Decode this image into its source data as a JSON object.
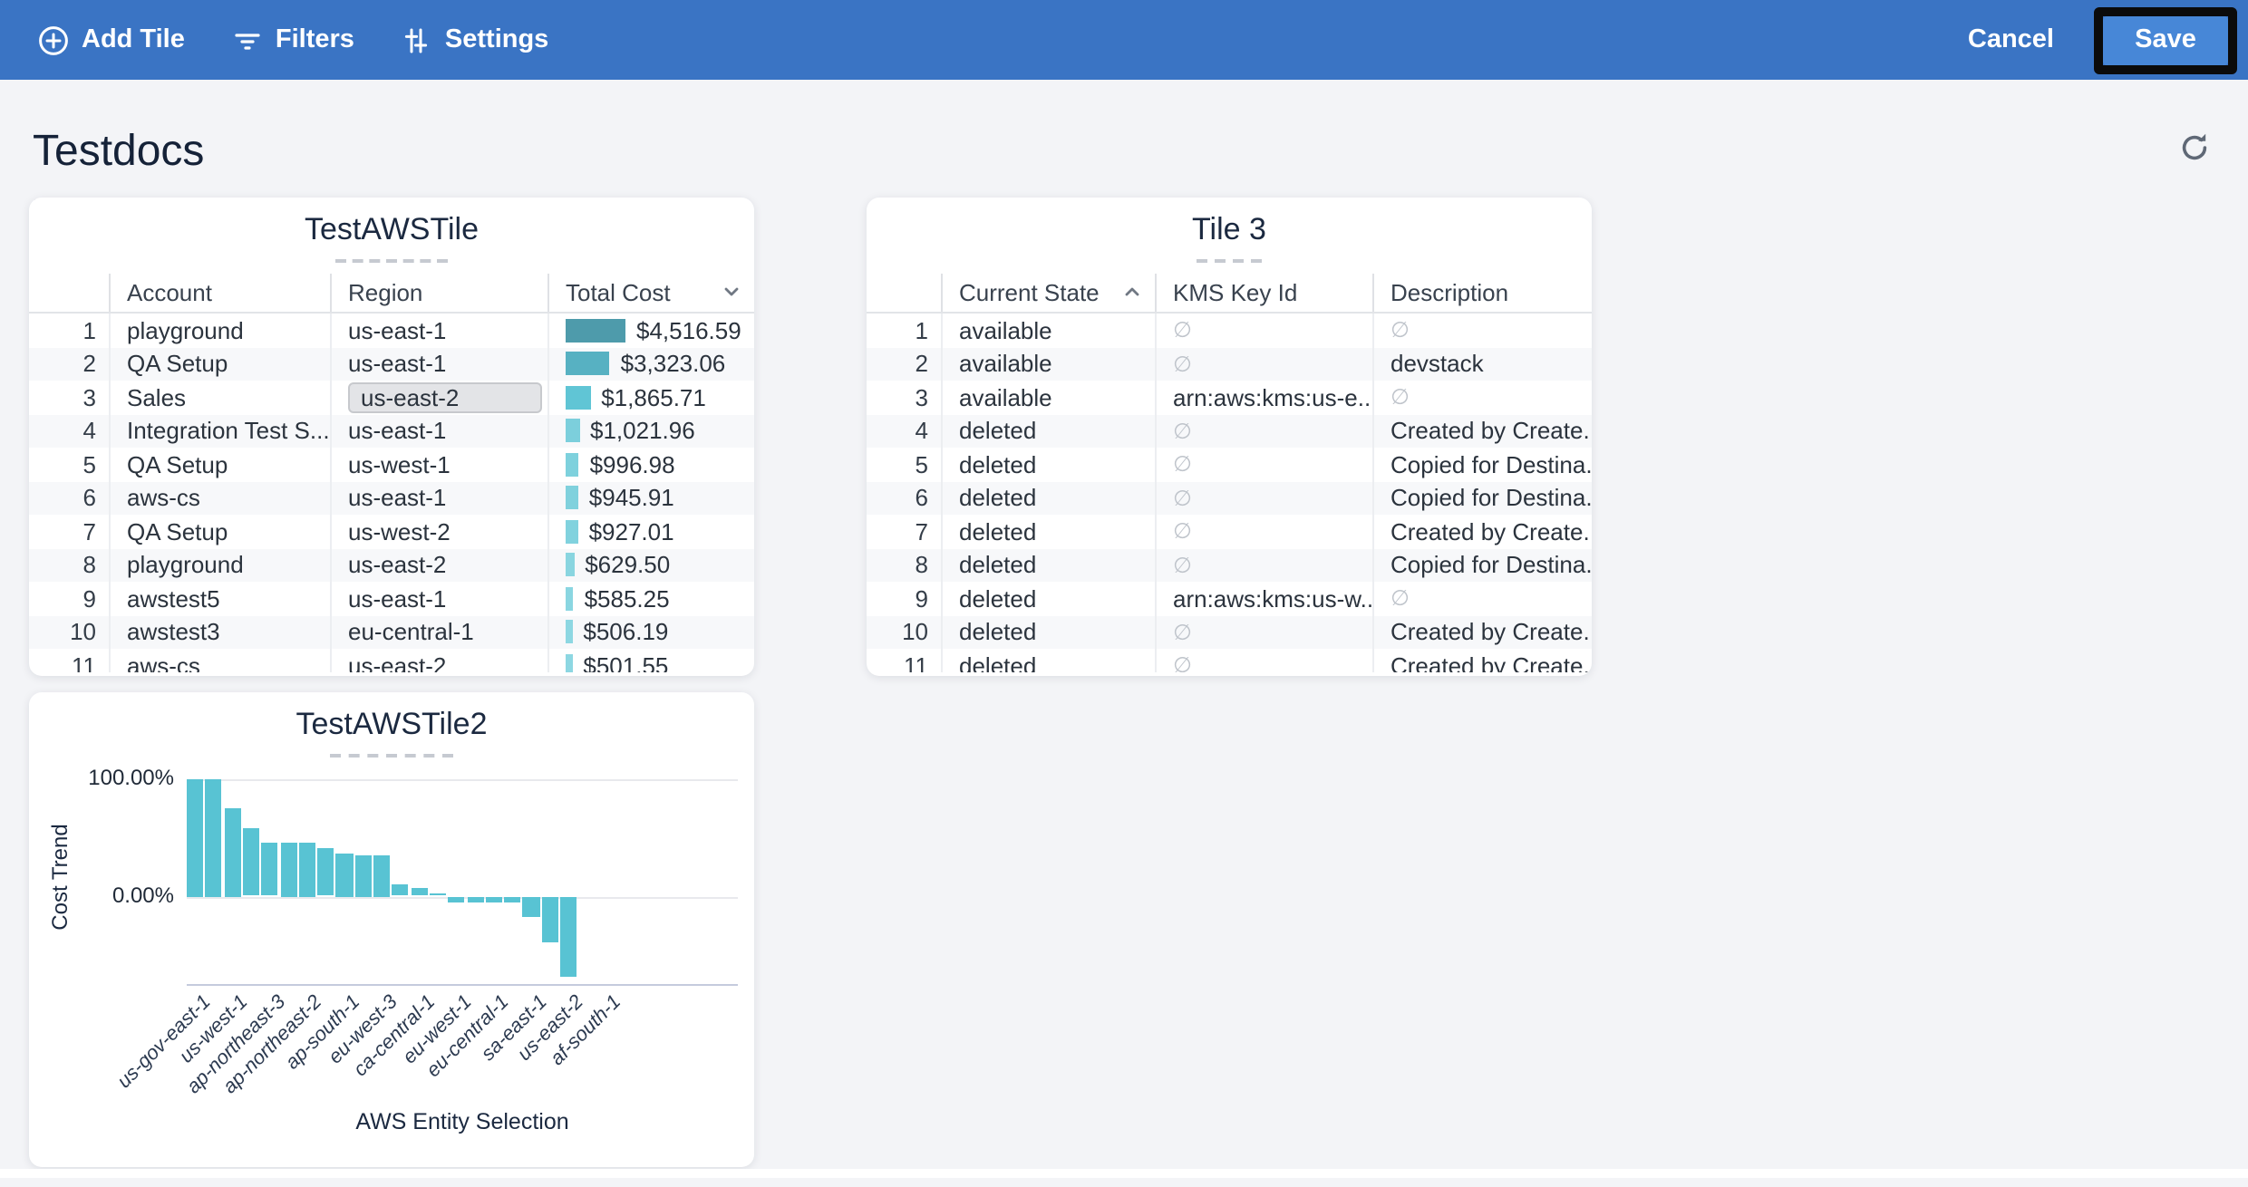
{
  "topbar": {
    "add_tile": "Add Tile",
    "filters": "Filters",
    "settings": "Settings",
    "cancel": "Cancel",
    "save": "Save",
    "bg_color": "#3a74c4",
    "save_color": "#4787d7"
  },
  "page": {
    "title": "Testdocs"
  },
  "tile1": {
    "title": "TestAWSTile",
    "columns": {
      "account": "Account",
      "region": "Region",
      "cost": "Total Cost"
    },
    "sort": {
      "column": "Total Cost",
      "direction": "desc"
    },
    "bar_max_value": 4516.59,
    "rows": [
      {
        "n": "1",
        "account": "playground",
        "region": "us-east-1",
        "cost": "$4,516.59",
        "bar_pct": 100.0,
        "bar_color": "#4e9bab",
        "region_selected": false
      },
      {
        "n": "2",
        "account": "QA Setup",
        "region": "us-east-1",
        "cost": "$3,323.06",
        "bar_pct": 73.6,
        "bar_color": "#57b1c2",
        "region_selected": false
      },
      {
        "n": "3",
        "account": "Sales",
        "region": "us-east-2",
        "cost": "$1,865.71",
        "bar_pct": 41.3,
        "bar_color": "#60c5d5",
        "region_selected": true
      },
      {
        "n": "4",
        "account": "Integration Test S...",
        "region": "us-east-1",
        "cost": "$1,021.96",
        "bar_pct": 22.6,
        "bar_color": "#7ccfdc",
        "region_selected": false
      },
      {
        "n": "5",
        "account": "QA Setup",
        "region": "us-west-1",
        "cost": "$996.98",
        "bar_pct": 22.1,
        "bar_color": "#7ed1dd",
        "region_selected": false
      },
      {
        "n": "6",
        "account": "aws-cs",
        "region": "us-east-1",
        "cost": "$945.91",
        "bar_pct": 20.9,
        "bar_color": "#80d1dd",
        "region_selected": false
      },
      {
        "n": "7",
        "account": "QA Setup",
        "region": "us-west-2",
        "cost": "$927.01",
        "bar_pct": 20.5,
        "bar_color": "#81d2de",
        "region_selected": false
      },
      {
        "n": "8",
        "account": "playground",
        "region": "us-east-2",
        "cost": "$629.50",
        "bar_pct": 13.9,
        "bar_color": "#89d5e0",
        "region_selected": false
      },
      {
        "n": "9",
        "account": "awstest5",
        "region": "us-east-1",
        "cost": "$585.25",
        "bar_pct": 13.0,
        "bar_color": "#8ad6e1",
        "region_selected": false
      },
      {
        "n": "10",
        "account": "awstest3",
        "region": "eu-central-1",
        "cost": "$506.19",
        "bar_pct": 11.2,
        "bar_color": "#8dd7e2",
        "region_selected": false
      },
      {
        "n": "11",
        "account": "aws-cs",
        "region": "us-east-2",
        "cost": "$501.55",
        "bar_pct": 11.1,
        "bar_color": "#8dd7e2",
        "region_selected": false
      }
    ]
  },
  "tile3": {
    "title": "Tile 3",
    "columns": {
      "state": "Current State",
      "kms": "KMS Key Id",
      "desc": "Description"
    },
    "sort": {
      "column": "Current State",
      "direction": "asc"
    },
    "null_symbol": "∅",
    "rows": [
      {
        "n": "1",
        "state": "available",
        "kms": null,
        "desc": null
      },
      {
        "n": "2",
        "state": "available",
        "kms": null,
        "desc": "devstack"
      },
      {
        "n": "3",
        "state": "available",
        "kms": "arn:aws:kms:us-e...",
        "desc": null
      },
      {
        "n": "4",
        "state": "deleted",
        "kms": null,
        "desc": "Created by Create..."
      },
      {
        "n": "5",
        "state": "deleted",
        "kms": null,
        "desc": "Copied for Destina..."
      },
      {
        "n": "6",
        "state": "deleted",
        "kms": null,
        "desc": "Copied for Destina..."
      },
      {
        "n": "7",
        "state": "deleted",
        "kms": null,
        "desc": "Created by Create..."
      },
      {
        "n": "8",
        "state": "deleted",
        "kms": null,
        "desc": "Copied for Destina..."
      },
      {
        "n": "9",
        "state": "deleted",
        "kms": "arn:aws:kms:us-w...",
        "desc": null
      },
      {
        "n": "10",
        "state": "deleted",
        "kms": null,
        "desc": "Created by Create..."
      },
      {
        "n": "11",
        "state": "deleted",
        "kms": null,
        "desc": "Created by Create..."
      }
    ]
  },
  "chart_data": {
    "type": "bar",
    "title": "TestAWSTile2",
    "xlabel": "AWS Entity Selection",
    "ylabel": "Cost Trend",
    "y_tick_labels": [
      "100.00%",
      "0.00%"
    ],
    "ylim": [
      -77,
      109
    ],
    "grid": true,
    "legend": false,
    "bar_color": "#58c3d3",
    "values_unit": "percent",
    "values": [
      100,
      100,
      75,
      57,
      46,
      45,
      45,
      41,
      37,
      35,
      35,
      10.5,
      7.5,
      2,
      -5,
      -5,
      -5,
      -5,
      -17.5,
      -38.5,
      -68,
      0,
      0
    ],
    "x_tick_labels": [
      "us-gov-east-1",
      "us-west-1",
      "ap-northeast-3",
      "ap-northeast-2",
      "ap-south-1",
      "eu-west-3",
      "ca-central-1",
      "eu-west-1",
      "eu-central-1",
      "sa-east-1",
      "us-east-2",
      "af-south-1"
    ],
    "x_tick_every_other_bar": true
  }
}
